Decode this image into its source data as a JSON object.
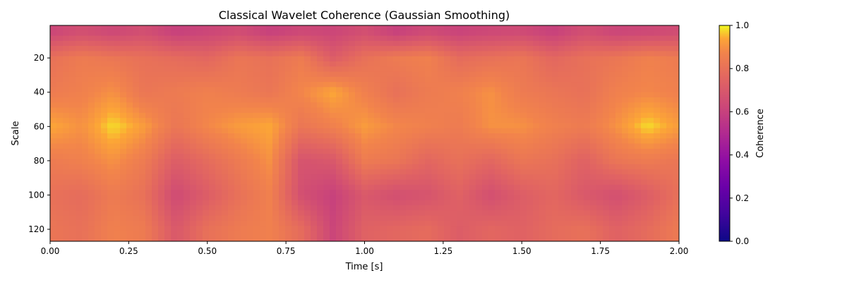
{
  "chart_data": {
    "type": "heatmap",
    "title": "Classical Wavelet Coherence (Gaussian Smoothing)",
    "xlabel": "Time [s]",
    "ylabel": "Scale",
    "xlim": [
      0,
      2
    ],
    "ylim": [
      127,
      1
    ],
    "y_inverted": true,
    "x_ticks": [
      0,
      0.25,
      0.5,
      0.75,
      1.0,
      1.25,
      1.5,
      1.75,
      2.0
    ],
    "x_tick_labels": [
      "0.00",
      "0.25",
      "0.50",
      "0.75",
      "1.00",
      "1.25",
      "1.50",
      "1.75",
      "2.00"
    ],
    "y_ticks": [
      20,
      40,
      60,
      80,
      100,
      120
    ],
    "y_tick_labels": [
      "20",
      "40",
      "60",
      "80",
      "100",
      "120"
    ],
    "colormap": "plasma",
    "colorbar": {
      "label": "Coherence",
      "range": [
        0,
        1
      ],
      "ticks": [
        0,
        0.2,
        0.4,
        0.6,
        0.8,
        1.0
      ],
      "tick_labels": [
        "0.0",
        "0.2",
        "0.4",
        "0.6",
        "0.8",
        "1.0"
      ]
    },
    "grid": false,
    "time_points": [
      0.0,
      0.1,
      0.2,
      0.3,
      0.4,
      0.5,
      0.6,
      0.7,
      0.8,
      0.9,
      1.0,
      1.1,
      1.2,
      1.3,
      1.4,
      1.5,
      1.6,
      1.7,
      1.8,
      1.9,
      2.0
    ],
    "scale_points": [
      5,
      20,
      40,
      60,
      80,
      100,
      120
    ],
    "coherence": [
      [
        0.62,
        0.66,
        0.63,
        0.66,
        0.6,
        0.62,
        0.65,
        0.6,
        0.63,
        0.62,
        0.66,
        0.6,
        0.64,
        0.61,
        0.63,
        0.64,
        0.6,
        0.66,
        0.62,
        0.63,
        0.65
      ],
      [
        0.8,
        0.84,
        0.82,
        0.8,
        0.78,
        0.76,
        0.82,
        0.8,
        0.84,
        0.72,
        0.8,
        0.84,
        0.86,
        0.78,
        0.8,
        0.82,
        0.76,
        0.8,
        0.82,
        0.86,
        0.84
      ],
      [
        0.84,
        0.86,
        0.9,
        0.82,
        0.84,
        0.86,
        0.84,
        0.82,
        0.88,
        0.94,
        0.86,
        0.8,
        0.84,
        0.86,
        0.9,
        0.84,
        0.82,
        0.8,
        0.86,
        0.88,
        0.86
      ],
      [
        0.94,
        0.9,
        0.98,
        0.92,
        0.82,
        0.88,
        0.92,
        0.94,
        0.82,
        0.86,
        0.92,
        0.88,
        0.86,
        0.84,
        0.9,
        0.9,
        0.86,
        0.84,
        0.9,
        0.98,
        0.92
      ],
      [
        0.84,
        0.86,
        0.9,
        0.84,
        0.72,
        0.78,
        0.84,
        0.9,
        0.68,
        0.7,
        0.84,
        0.82,
        0.76,
        0.8,
        0.76,
        0.82,
        0.8,
        0.74,
        0.82,
        0.84,
        0.82
      ],
      [
        0.8,
        0.78,
        0.84,
        0.8,
        0.64,
        0.72,
        0.8,
        0.86,
        0.66,
        0.6,
        0.7,
        0.66,
        0.68,
        0.74,
        0.66,
        0.72,
        0.76,
        0.7,
        0.66,
        0.72,
        0.8
      ],
      [
        0.82,
        0.8,
        0.86,
        0.84,
        0.7,
        0.8,
        0.84,
        0.86,
        0.78,
        0.62,
        0.74,
        0.76,
        0.78,
        0.72,
        0.76,
        0.74,
        0.78,
        0.8,
        0.74,
        0.78,
        0.84
      ]
    ]
  }
}
